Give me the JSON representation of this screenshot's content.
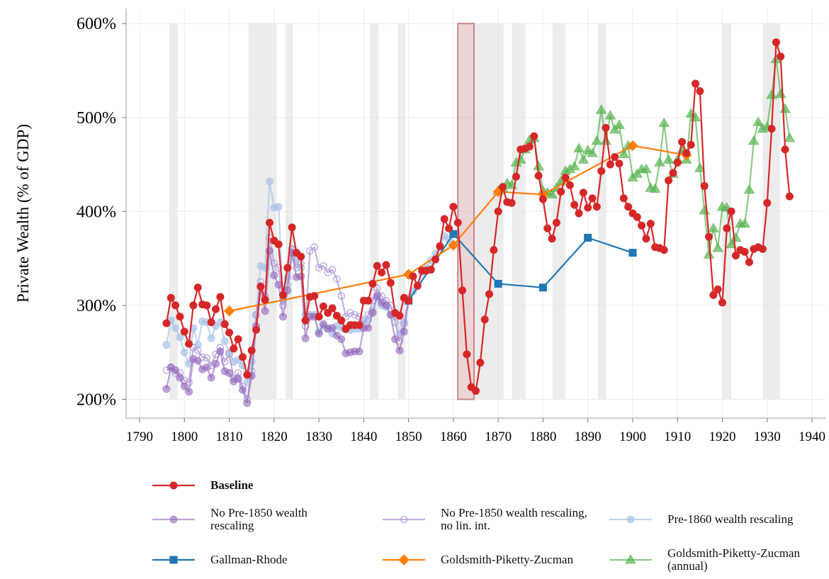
{
  "chart_data": {
    "type": "line",
    "y_label": "Private Wealth (% of GDP)",
    "xlim": [
      1787,
      1943
    ],
    "ylim": [
      180,
      616
    ],
    "xticks": [
      1790,
      1800,
      1810,
      1820,
      1830,
      1840,
      1850,
      1860,
      1870,
      1880,
      1890,
      1900,
      1910,
      1920,
      1930,
      1940
    ],
    "yticks": [
      {
        "value": 200,
        "label": "200%"
      },
      {
        "value": 300,
        "label": "300%"
      },
      {
        "value": 400,
        "label": "400%"
      },
      {
        "value": 500,
        "label": "500%"
      },
      {
        "value": 600,
        "label": "600%"
      }
    ],
    "grid": true,
    "shaded_periods": [
      [
        1796.6,
        1798.5
      ],
      [
        1814.3,
        1820.6
      ],
      [
        1822.6,
        1824.2
      ],
      [
        1841.4,
        1843.3
      ],
      [
        1847.6,
        1849.3
      ],
      [
        1864.8,
        1871.2
      ],
      [
        1873.1,
        1876.1
      ],
      [
        1882.1,
        1885
      ],
      [
        1892.2,
        1894.1
      ],
      [
        1920,
        1922
      ],
      [
        1929,
        1932.9
      ]
    ],
    "shade_color": "#e4e4e4",
    "highlight_period": [
      1861,
      1864.6
    ],
    "highlight_color": "#c9878a",
    "shade_ylim": [
      200,
      600
    ],
    "legend_position": "bottom",
    "series": [
      {
        "name": "Baseline",
        "color": "#d62728",
        "marker": "circle",
        "opacity": 1,
        "bold": true,
        "x": [
          1796,
          1797,
          1798,
          1799,
          1800,
          1801,
          1802,
          1803,
          1804,
          1805,
          1806,
          1807,
          1808,
          1809,
          1810,
          1811,
          1812,
          1813,
          1814,
          1815,
          1816,
          1817,
          1818,
          1819,
          1820,
          1821,
          1822,
          1823,
          1824,
          1825,
          1826,
          1827,
          1828,
          1829,
          1830,
          1831,
          1832,
          1833,
          1834,
          1835,
          1836,
          1837,
          1838,
          1839,
          1840,
          1841,
          1842,
          1843,
          1844,
          1845,
          1846,
          1847,
          1848,
          1849,
          1850,
          1851,
          1852,
          1853,
          1854,
          1855,
          1856,
          1857,
          1858,
          1859,
          1860,
          1861,
          1862,
          1863,
          1864,
          1865,
          1866,
          1867,
          1868,
          1869,
          1870,
          1871,
          1872,
          1873,
          1874,
          1875,
          1876,
          1877,
          1878,
          1879,
          1880,
          1881,
          1882,
          1883,
          1884,
          1885,
          1886,
          1887,
          1888,
          1889,
          1890,
          1891,
          1892,
          1893,
          1894,
          1895,
          1896,
          1897,
          1898,
          1899,
          1900,
          1901,
          1902,
          1903,
          1904,
          1905,
          1906,
          1907,
          1908,
          1909,
          1910,
          1911,
          1912,
          1913,
          1914,
          1915,
          1916,
          1917,
          1918,
          1919,
          1920,
          1921,
          1922,
          1923,
          1924,
          1925,
          1926,
          1927,
          1928,
          1929,
          1930,
          1931,
          1932,
          1933,
          1934,
          1935
        ],
        "values": [
          281,
          308,
          300,
          288,
          272,
          259,
          300,
          319,
          301,
          300,
          282,
          296,
          309,
          280,
          271,
          254,
          264,
          245,
          226,
          252,
          274,
          320,
          306,
          388,
          369,
          365,
          311,
          340,
          383,
          356,
          352,
          284,
          309,
          310,
          288,
          299,
          292,
          297,
          289,
          284,
          275,
          279,
          279,
          279,
          305,
          305,
          323,
          342,
          335,
          343,
          324,
          292,
          289,
          308,
          305,
          331,
          321,
          337,
          337,
          338,
          349,
          363,
          392,
          382,
          405,
          388,
          316,
          248,
          213,
          209,
          239,
          285,
          312,
          359,
          400,
          426,
          410,
          409,
          437,
          466,
          467,
          469,
          480,
          438,
          413,
          382,
          371,
          388,
          421,
          436,
          428,
          407,
          398,
          420,
          404,
          414,
          405,
          443,
          489,
          450,
          458,
          451,
          414,
          405,
          398,
          394,
          385,
          371,
          387,
          362,
          361,
          359,
          433,
          441,
          452,
          474,
          462,
          471,
          536,
          528,
          427,
          373,
          311,
          317,
          303,
          382,
          400,
          353,
          359,
          357,
          346,
          360,
          362,
          360,
          409,
          488,
          580,
          565,
          466,
          416
        ]
      },
      {
        "name": "No Pre-1850 wealth rescaling",
        "color": "#9467bd",
        "marker": "circle",
        "opacity": 0.6,
        "x": [
          1796,
          1797,
          1798,
          1799,
          1800,
          1801,
          1802,
          1803,
          1804,
          1805,
          1806,
          1807,
          1808,
          1809,
          1810,
          1811,
          1812,
          1813,
          1814,
          1815,
          1816,
          1817,
          1818,
          1819,
          1820,
          1821,
          1822,
          1823,
          1824,
          1825,
          1826,
          1827,
          1828,
          1829,
          1830,
          1831,
          1832,
          1833,
          1834,
          1835,
          1836,
          1837,
          1838,
          1839,
          1840,
          1841,
          1842,
          1843,
          1844,
          1845,
          1846,
          1847,
          1848,
          1849,
          1850
        ],
        "values": [
          211,
          234,
          231,
          223,
          214,
          208,
          243,
          241,
          232,
          234,
          223,
          238,
          251,
          230,
          228,
          219,
          222,
          210,
          196,
          225,
          278,
          320,
          294,
          358,
          332,
          322,
          288,
          316,
          356,
          330,
          331,
          265,
          288,
          288,
          270,
          280,
          275,
          276,
          268,
          264,
          249,
          250,
          251,
          251,
          276,
          276,
          292,
          310,
          303,
          300,
          290,
          264,
          252,
          272,
          305
        ]
      },
      {
        "name": "No Pre-1850 wealth rescaling, no lin. int.",
        "color": "#b39ddb",
        "marker": "circle-open",
        "opacity": 0.8,
        "x": [
          1796,
          1797,
          1798,
          1799,
          1800,
          1801,
          1802,
          1803,
          1804,
          1805,
          1806,
          1807,
          1808,
          1809,
          1810,
          1811,
          1812,
          1813,
          1814,
          1815,
          1816,
          1817,
          1818,
          1819,
          1820,
          1821,
          1822,
          1823,
          1824,
          1825,
          1826,
          1827,
          1828,
          1829,
          1830,
          1831,
          1832,
          1833,
          1834,
          1835,
          1836,
          1837,
          1838,
          1839,
          1840,
          1841,
          1842,
          1843,
          1844,
          1845,
          1846,
          1847,
          1848,
          1849,
          1850
        ],
        "values": [
          231,
          234,
          228,
          228,
          220,
          218,
          255,
          252,
          245,
          244,
          236,
          248,
          255,
          240,
          248,
          222,
          228,
          214,
          200,
          230,
          290,
          325,
          310,
          372,
          345,
          340,
          300,
          322,
          360,
          340,
          345,
          278,
          358,
          362,
          340,
          342,
          335,
          338,
          328,
          310,
          288,
          292,
          290,
          288,
          280,
          290,
          305,
          318,
          310,
          305,
          300,
          282,
          262,
          280,
          308
        ]
      },
      {
        "name": "Pre-1860 wealth rescaling",
        "color": "#aec7e8",
        "marker": "circle",
        "opacity": 0.75,
        "x": [
          1796,
          1797,
          1798,
          1799,
          1800,
          1801,
          1802,
          1803,
          1804,
          1805,
          1806,
          1807,
          1808,
          1809,
          1810,
          1811,
          1812,
          1813,
          1814,
          1815,
          1816,
          1817,
          1818,
          1819,
          1820,
          1821,
          1822,
          1823,
          1824,
          1825,
          1826,
          1827,
          1828,
          1829,
          1830,
          1831,
          1832,
          1833,
          1834,
          1835,
          1836,
          1837,
          1838,
          1839,
          1840,
          1841,
          1842,
          1843,
          1844,
          1845,
          1846,
          1847,
          1848,
          1849,
          1850,
          1851,
          1852,
          1853,
          1854,
          1855,
          1856,
          1857,
          1858,
          1859,
          1860
        ],
        "values": [
          258,
          284,
          276,
          266,
          250,
          238,
          276,
          258,
          283,
          282,
          265,
          278,
          282,
          262,
          250,
          240,
          242,
          236,
          218,
          240,
          290,
          342,
          340,
          432,
          404,
          405,
          306,
          330,
          360,
          348,
          340,
          290,
          290,
          290,
          272,
          278,
          276,
          270,
          278,
          276,
          274,
          274,
          275,
          275,
          284,
          285,
          294,
          308,
          300,
          298,
          290,
          290,
          270,
          282,
          306,
          315,
          320,
          335,
          340,
          348,
          355,
          362,
          374,
          370,
          376
        ]
      },
      {
        "name": "Gallman-Rhode",
        "color": "#1f77b4",
        "marker": "square",
        "opacity": 1,
        "x": [
          1850,
          1860,
          1870,
          1880,
          1890,
          1900
        ],
        "values": [
          305,
          376,
          323,
          319,
          372,
          356
        ]
      },
      {
        "name": "Goldsmith-Piketty-Zucman",
        "color": "#ff7f0e",
        "marker": "diamond",
        "opacity": 1,
        "x": [
          1810,
          1850,
          1860,
          1870,
          1880,
          1900,
          1912
        ],
        "values": [
          294,
          333,
          364,
          421,
          418,
          470,
          460
        ]
      },
      {
        "name": "Goldsmith-Piketty-Zucman (annual)",
        "color": "#5ab552",
        "marker": "triangle",
        "opacity": 0.7,
        "x": [
          1870,
          1871,
          1872,
          1873,
          1874,
          1875,
          1876,
          1877,
          1878,
          1879,
          1880,
          1881,
          1882,
          1883,
          1884,
          1885,
          1886,
          1887,
          1888,
          1889,
          1890,
          1891,
          1892,
          1893,
          1894,
          1895,
          1896,
          1897,
          1898,
          1899,
          1900,
          1901,
          1902,
          1903,
          1904,
          1905,
          1906,
          1907,
          1908,
          1909,
          1910,
          1911,
          1912,
          1913,
          1914,
          1915,
          1916,
          1917,
          1918,
          1919,
          1920,
          1921,
          1922,
          1923,
          1924,
          1925,
          1926,
          1927,
          1928,
          1929,
          1930,
          1931,
          1932,
          1933,
          1934,
          1935
        ],
        "values": [
          422,
          425,
          430,
          428,
          452,
          455,
          466,
          476,
          478,
          448,
          422,
          420,
          418,
          425,
          432,
          443,
          445,
          448,
          467,
          455,
          465,
          462,
          475,
          508,
          475,
          502,
          487,
          492,
          461,
          470,
          436,
          440,
          445,
          445,
          425,
          424,
          452,
          494,
          455,
          440,
          455,
          465,
          455,
          504,
          500,
          446,
          401,
          354,
          382,
          361,
          405,
          404,
          365,
          372,
          387,
          387,
          423,
          475,
          495,
          488,
          490,
          524,
          562,
          525,
          509,
          478
        ]
      }
    ]
  }
}
